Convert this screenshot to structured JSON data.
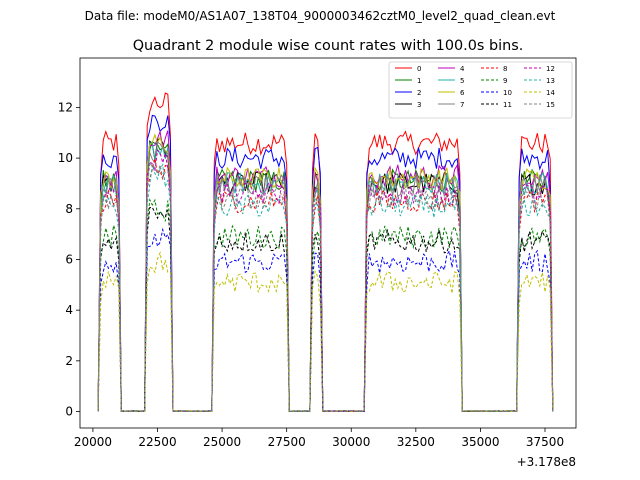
{
  "figure": {
    "suptitle": "Data file: modeM0/AS1A07_138T04_9000003462cztM0_level2_quad_clean.evt"
  },
  "chart_data": {
    "type": "line",
    "title": "Quadrant 2 module wise count rates with 100.0s bins.",
    "xlabel": "",
    "ylabel": "",
    "x_offset_label": "+3.178e8",
    "xlim": [
      19500,
      38700
    ],
    "ylim": [
      -0.65,
      13.95
    ],
    "xticks": [
      20000,
      22500,
      25000,
      27500,
      30000,
      32500,
      35000,
      37500
    ],
    "xtick_labels": [
      "20000",
      "22500",
      "25000",
      "27500",
      "30000",
      "32500",
      "35000",
      "37500"
    ],
    "yticks": [
      0,
      2,
      4,
      6,
      8,
      10,
      12
    ],
    "ytick_labels": [
      "0",
      "2",
      "4",
      "6",
      "8",
      "10",
      "12"
    ],
    "grid": false,
    "legend_placement": "top-right",
    "legend_columns": 4,
    "segments": [
      {
        "x_start": 20300,
        "x_end": 21000
      },
      {
        "x_start": 22100,
        "x_end": 23000
      },
      {
        "x_start": 24700,
        "x_end": 27500
      },
      {
        "x_start": 28500,
        "x_end": 28800
      },
      {
        "x_start": 30600,
        "x_end": 34200
      },
      {
        "x_start": 36500,
        "x_end": 37700
      }
    ],
    "x_end": 37800,
    "series": [
      {
        "name": "0",
        "color": "#ff0000",
        "dashed": false,
        "level": 10.6
      },
      {
        "name": "1",
        "color": "#008000",
        "dashed": false,
        "level": 9.1
      },
      {
        "name": "2",
        "color": "#0000ff",
        "dashed": false,
        "level": 10.0
      },
      {
        "name": "3",
        "color": "#000000",
        "dashed": false,
        "level": 9.0
      },
      {
        "name": "4",
        "color": "#bf00bf",
        "dashed": false,
        "level": 9.3
      },
      {
        "name": "5",
        "color": "#20b2aa",
        "dashed": false,
        "level": 9.0
      },
      {
        "name": "6",
        "color": "#bfbf00",
        "dashed": false,
        "level": 9.2
      },
      {
        "name": "7",
        "color": "#808080",
        "dashed": false,
        "level": 8.9
      },
      {
        "name": "8",
        "color": "#ff0000",
        "dashed": true,
        "level": 8.3
      },
      {
        "name": "9",
        "color": "#008000",
        "dashed": true,
        "level": 6.9
      },
      {
        "name": "10",
        "color": "#0000ff",
        "dashed": true,
        "level": 5.9
      },
      {
        "name": "11",
        "color": "#000000",
        "dashed": true,
        "level": 6.7
      },
      {
        "name": "12",
        "color": "#bf00bf",
        "dashed": true,
        "level": 8.6
      },
      {
        "name": "13",
        "color": "#20b2aa",
        "dashed": true,
        "level": 8.1
      },
      {
        "name": "14",
        "color": "#bfbf00",
        "dashed": true,
        "level": 5.1
      },
      {
        "name": "15",
        "color": "#808080",
        "dashed": true,
        "level": 8.4
      }
    ]
  }
}
